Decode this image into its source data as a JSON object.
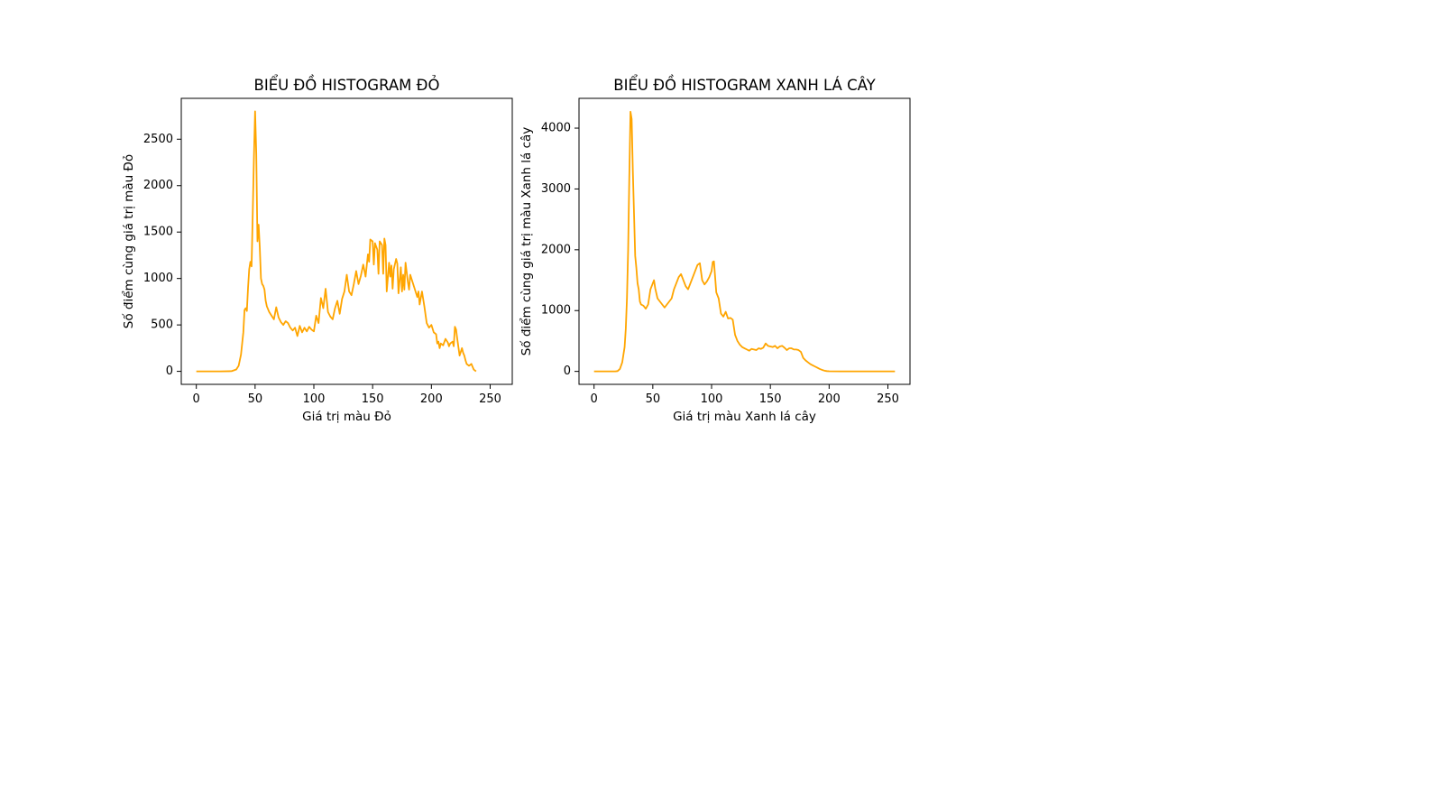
{
  "chart_data": [
    {
      "type": "line",
      "title": "BIỂU ĐỒ HISTOGRAM ĐỎ",
      "xlabel": "Giá trị màu Đỏ",
      "ylabel": "Số điểm cùng giá trị màu Đỏ",
      "xlim": [
        -12.8,
        268.8
      ],
      "ylim": [
        -140,
        2940
      ],
      "xticks": [
        0,
        50,
        100,
        150,
        200,
        250
      ],
      "yticks": [
        0,
        500,
        1000,
        1500,
        2000,
        2500
      ],
      "grid": false,
      "line_color": "#FFA500",
      "points": [
        [
          0,
          0
        ],
        [
          10,
          0
        ],
        [
          20,
          0
        ],
        [
          30,
          2
        ],
        [
          34,
          20
        ],
        [
          36,
          60
        ],
        [
          38,
          180
        ],
        [
          40,
          420
        ],
        [
          41,
          660
        ],
        [
          42,
          680
        ],
        [
          43,
          650
        ],
        [
          44,
          900
        ],
        [
          45,
          1100
        ],
        [
          46,
          1180
        ],
        [
          47,
          1130
        ],
        [
          48,
          1700
        ],
        [
          49,
          2300
        ],
        [
          50,
          2800
        ],
        [
          51,
          2350
        ],
        [
          52,
          1400
        ],
        [
          53,
          1580
        ],
        [
          54,
          1330
        ],
        [
          55,
          1000
        ],
        [
          56,
          940
        ],
        [
          57,
          920
        ],
        [
          58,
          880
        ],
        [
          59,
          760
        ],
        [
          60,
          700
        ],
        [
          62,
          640
        ],
        [
          64,
          600
        ],
        [
          66,
          560
        ],
        [
          68,
          690
        ],
        [
          70,
          580
        ],
        [
          72,
          530
        ],
        [
          74,
          500
        ],
        [
          76,
          540
        ],
        [
          78,
          520
        ],
        [
          80,
          470
        ],
        [
          82,
          440
        ],
        [
          84,
          470
        ],
        [
          86,
          380
        ],
        [
          88,
          490
        ],
        [
          90,
          420
        ],
        [
          92,
          470
        ],
        [
          94,
          430
        ],
        [
          96,
          480
        ],
        [
          98,
          450
        ],
        [
          100,
          430
        ],
        [
          102,
          600
        ],
        [
          104,
          520
        ],
        [
          106,
          790
        ],
        [
          108,
          680
        ],
        [
          110,
          890
        ],
        [
          112,
          640
        ],
        [
          114,
          590
        ],
        [
          116,
          560
        ],
        [
          118,
          680
        ],
        [
          120,
          760
        ],
        [
          122,
          620
        ],
        [
          124,
          780
        ],
        [
          126,
          860
        ],
        [
          128,
          1040
        ],
        [
          130,
          860
        ],
        [
          132,
          820
        ],
        [
          134,
          940
        ],
        [
          136,
          1080
        ],
        [
          138,
          940
        ],
        [
          140,
          1030
        ],
        [
          142,
          1150
        ],
        [
          144,
          1020
        ],
        [
          146,
          1260
        ],
        [
          147,
          1180
        ],
        [
          148,
          1420
        ],
        [
          150,
          1400
        ],
        [
          151,
          1150
        ],
        [
          152,
          1380
        ],
        [
          154,
          1310
        ],
        [
          155,
          1050
        ],
        [
          156,
          1400
        ],
        [
          158,
          1360
        ],
        [
          159,
          1050
        ],
        [
          160,
          1430
        ],
        [
          161,
          1360
        ],
        [
          162,
          860
        ],
        [
          164,
          1170
        ],
        [
          165,
          1020
        ],
        [
          166,
          1140
        ],
        [
          167,
          890
        ],
        [
          168,
          1100
        ],
        [
          170,
          1210
        ],
        [
          171,
          1160
        ],
        [
          172,
          840
        ],
        [
          174,
          1120
        ],
        [
          175,
          860
        ],
        [
          176,
          1040
        ],
        [
          177,
          880
        ],
        [
          178,
          1170
        ],
        [
          180,
          960
        ],
        [
          181,
          880
        ],
        [
          182,
          1040
        ],
        [
          184,
          960
        ],
        [
          186,
          880
        ],
        [
          188,
          800
        ],
        [
          189,
          860
        ],
        [
          190,
          720
        ],
        [
          192,
          860
        ],
        [
          194,
          700
        ],
        [
          196,
          520
        ],
        [
          198,
          470
        ],
        [
          200,
          500
        ],
        [
          202,
          420
        ],
        [
          204,
          400
        ],
        [
          205,
          300
        ],
        [
          206,
          320
        ],
        [
          207,
          250
        ],
        [
          208,
          300
        ],
        [
          210,
          280
        ],
        [
          212,
          350
        ],
        [
          214,
          310
        ],
        [
          215,
          270
        ],
        [
          216,
          300
        ],
        [
          218,
          320
        ],
        [
          219,
          270
        ],
        [
          220,
          480
        ],
        [
          221,
          450
        ],
        [
          222,
          350
        ],
        [
          223,
          260
        ],
        [
          224,
          170
        ],
        [
          226,
          250
        ],
        [
          227,
          200
        ],
        [
          228,
          170
        ],
        [
          229,
          120
        ],
        [
          230,
          80
        ],
        [
          232,
          60
        ],
        [
          234,
          80
        ],
        [
          235,
          50
        ],
        [
          236,
          20
        ],
        [
          237,
          10
        ],
        [
          238,
          0
        ]
      ]
    },
    {
      "type": "line",
      "title": "BIỂU ĐỒ HISTOGRAM XANH LÁ CÂY",
      "xlabel": "Giá trị màu Xanh lá cây",
      "ylabel": "Số điểm cùng giá trị màu Xanh lá cây",
      "xlim": [
        -12.8,
        268.8
      ],
      "ylim": [
        -213,
        4490
      ],
      "xticks": [
        0,
        50,
        100,
        150,
        200,
        250
      ],
      "yticks": [
        0,
        1000,
        2000,
        3000,
        4000
      ],
      "grid": false,
      "line_color": "#FFA500",
      "points": [
        [
          0,
          0
        ],
        [
          10,
          0
        ],
        [
          18,
          0
        ],
        [
          20,
          5
        ],
        [
          22,
          40
        ],
        [
          24,
          150
        ],
        [
          26,
          400
        ],
        [
          27,
          700
        ],
        [
          28,
          1200
        ],
        [
          29,
          2000
        ],
        [
          30,
          3200
        ],
        [
          31,
          4270
        ],
        [
          32,
          4150
        ],
        [
          33,
          3300
        ],
        [
          34,
          2600
        ],
        [
          35,
          1900
        ],
        [
          36,
          1700
        ],
        [
          37,
          1450
        ],
        [
          38,
          1350
        ],
        [
          39,
          1150
        ],
        [
          40,
          1100
        ],
        [
          42,
          1080
        ],
        [
          44,
          1030
        ],
        [
          46,
          1100
        ],
        [
          48,
          1350
        ],
        [
          50,
          1450
        ],
        [
          51,
          1500
        ],
        [
          52,
          1370
        ],
        [
          54,
          1200
        ],
        [
          56,
          1150
        ],
        [
          58,
          1100
        ],
        [
          60,
          1050
        ],
        [
          62,
          1100
        ],
        [
          64,
          1150
        ],
        [
          66,
          1200
        ],
        [
          68,
          1350
        ],
        [
          70,
          1450
        ],
        [
          72,
          1550
        ],
        [
          74,
          1600
        ],
        [
          76,
          1500
        ],
        [
          78,
          1400
        ],
        [
          80,
          1350
        ],
        [
          82,
          1450
        ],
        [
          84,
          1550
        ],
        [
          86,
          1650
        ],
        [
          88,
          1750
        ],
        [
          90,
          1780
        ],
        [
          92,
          1500
        ],
        [
          94,
          1430
        ],
        [
          96,
          1480
        ],
        [
          98,
          1550
        ],
        [
          100,
          1650
        ],
        [
          101,
          1800
        ],
        [
          102,
          1810
        ],
        [
          104,
          1300
        ],
        [
          106,
          1200
        ],
        [
          108,
          950
        ],
        [
          110,
          900
        ],
        [
          112,
          980
        ],
        [
          114,
          870
        ],
        [
          116,
          880
        ],
        [
          118,
          850
        ],
        [
          120,
          600
        ],
        [
          122,
          500
        ],
        [
          124,
          440
        ],
        [
          126,
          400
        ],
        [
          128,
          380
        ],
        [
          130,
          360
        ],
        [
          132,
          340
        ],
        [
          134,
          370
        ],
        [
          136,
          360
        ],
        [
          138,
          350
        ],
        [
          140,
          380
        ],
        [
          142,
          370
        ],
        [
          144,
          390
        ],
        [
          146,
          460
        ],
        [
          148,
          420
        ],
        [
          150,
          410
        ],
        [
          152,
          400
        ],
        [
          154,
          420
        ],
        [
          156,
          380
        ],
        [
          158,
          410
        ],
        [
          160,
          420
        ],
        [
          162,
          390
        ],
        [
          164,
          350
        ],
        [
          166,
          380
        ],
        [
          168,
          380
        ],
        [
          170,
          360
        ],
        [
          172,
          360
        ],
        [
          174,
          350
        ],
        [
          176,
          320
        ],
        [
          178,
          220
        ],
        [
          180,
          180
        ],
        [
          182,
          150
        ],
        [
          184,
          120
        ],
        [
          186,
          100
        ],
        [
          188,
          80
        ],
        [
          190,
          60
        ],
        [
          192,
          40
        ],
        [
          194,
          25
        ],
        [
          196,
          12
        ],
        [
          198,
          5
        ],
        [
          200,
          2
        ],
        [
          210,
          0
        ],
        [
          220,
          0
        ],
        [
          230,
          0
        ],
        [
          240,
          0
        ],
        [
          250,
          0
        ],
        [
          256,
          0
        ]
      ]
    }
  ]
}
